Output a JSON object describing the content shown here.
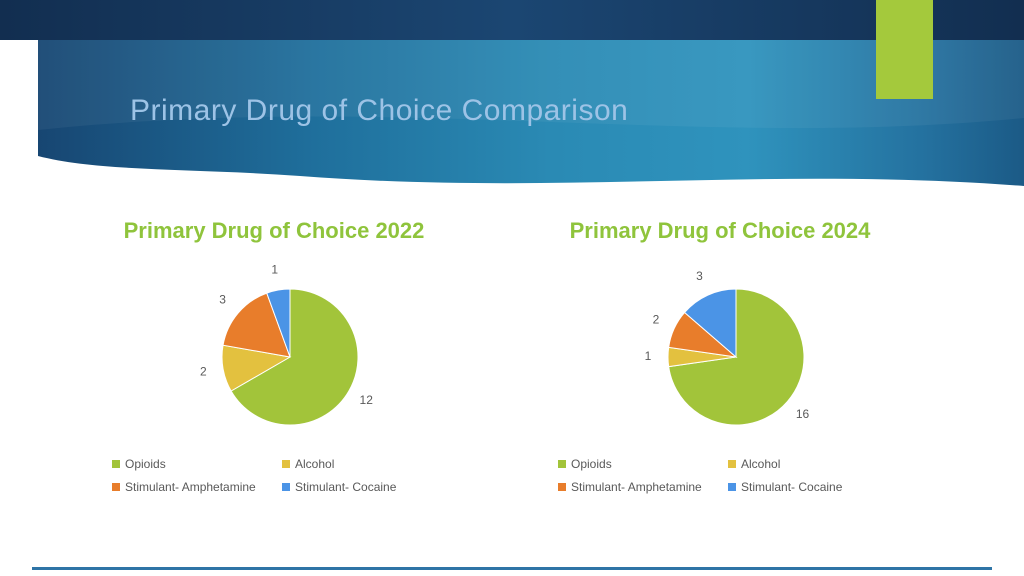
{
  "slide": {
    "title": "Primary Drug of Choice Comparison"
  },
  "theme": {
    "title_color": "#9dc3e6",
    "chart_title_color": "#8fc43c",
    "label_color": "#595959",
    "accent_green": "#a4c93c",
    "header_navy": "#16355a",
    "banner_blue": "#2a8ab4",
    "bottom_rule_color": "#2e74a6"
  },
  "chart_data": [
    {
      "type": "pie",
      "title": "Primary Drug of Choice 2022",
      "categories": [
        "Opioids",
        "Alcohol",
        "Stimulant- Amphetamine",
        "Stimulant- Cocaine"
      ],
      "values": [
        12,
        2,
        3,
        1
      ],
      "slice_colors": [
        "#a2c43a",
        "#e3c13f",
        "#e87d2b",
        "#4b94e6"
      ],
      "start_angle": 0,
      "direction": "clockwise",
      "legend_position": "bottom",
      "data_labels": true
    },
    {
      "type": "pie",
      "title": "Primary Drug of Choice 2024",
      "categories": [
        "Opioids",
        "Alcohol",
        "Stimulant- Amphetamine",
        "Stimulant- Cocaine"
      ],
      "values": [
        16,
        1,
        2,
        3
      ],
      "slice_colors": [
        "#a2c43a",
        "#e3c13f",
        "#e87d2b",
        "#4b94e6"
      ],
      "start_angle": 0,
      "direction": "clockwise",
      "legend_position": "bottom",
      "data_labels": true
    }
  ]
}
